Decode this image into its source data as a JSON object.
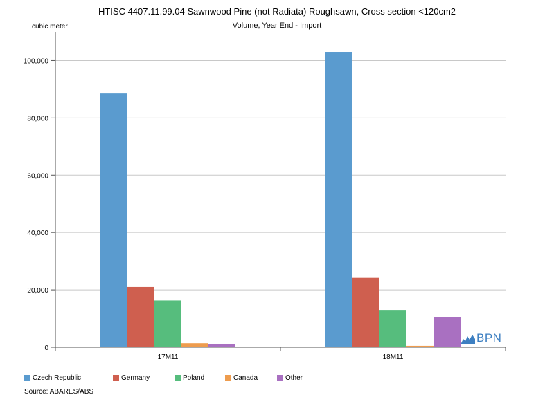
{
  "title": "HTISC 4407.11.99.04 Sawnwood Pine (not Radiata) Roughsawn, Cross section <120cm2",
  "subtitle": "Volume, Year End - Import",
  "source": "Source: ABARES/ABS",
  "logo_text": "BPN",
  "chart_data": {
    "type": "bar",
    "ylabel": "cubic meter",
    "xlabel": "",
    "ylim": [
      0,
      110000
    ],
    "yticks": [
      0,
      20000,
      40000,
      60000,
      80000,
      100000
    ],
    "ytick_labels": [
      "0",
      "20,000",
      "40,000",
      "60,000",
      "80,000",
      "100,000"
    ],
    "grid": true,
    "legend_position": "bottom",
    "categories": [
      "17M11",
      "18M11"
    ],
    "series": [
      {
        "name": "Czech Republic",
        "color": "#5a9bcf",
        "values": [
          88500,
          103000
        ]
      },
      {
        "name": "Germany",
        "color": "#cf5f4f",
        "values": [
          21000,
          24200
        ]
      },
      {
        "name": "Poland",
        "color": "#56bd7d",
        "values": [
          16300,
          13000
        ]
      },
      {
        "name": "Canada",
        "color": "#ee9c4e",
        "values": [
          1400,
          500
        ]
      },
      {
        "name": "Other",
        "color": "#a970c1",
        "values": [
          1100,
          10500
        ]
      }
    ]
  }
}
